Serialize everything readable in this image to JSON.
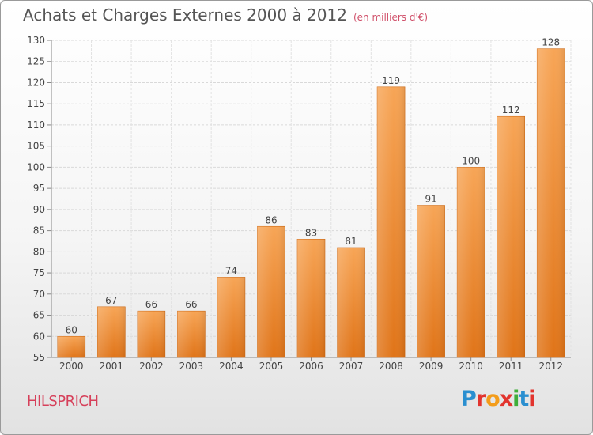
{
  "header": {
    "title": "Achats et Charges Externes 2000 à 2012",
    "subtitle": "(en milliers d'€)"
  },
  "footer": {
    "commune": "HILSPRICH",
    "logo": "Proxiti",
    "logo_colors": [
      "#2a8fd0",
      "#e2342e",
      "#f39c1a",
      "#e2342e",
      "#3fae3a",
      "#2a8fd0",
      "#e2342e"
    ]
  },
  "chart_data": {
    "type": "bar",
    "categories": [
      "2000",
      "2001",
      "2002",
      "2003",
      "2004",
      "2005",
      "2006",
      "2007",
      "2008",
      "2009",
      "2010",
      "2011",
      "2012"
    ],
    "values": [
      60,
      67,
      66,
      66,
      74,
      86,
      83,
      81,
      119,
      91,
      100,
      112,
      128
    ],
    "ylim": [
      55,
      130
    ],
    "yticks": [
      55,
      60,
      65,
      70,
      75,
      80,
      85,
      90,
      95,
      100,
      105,
      110,
      115,
      120,
      125,
      130
    ],
    "grid": true,
    "bar_color": "#f08a2e"
  }
}
